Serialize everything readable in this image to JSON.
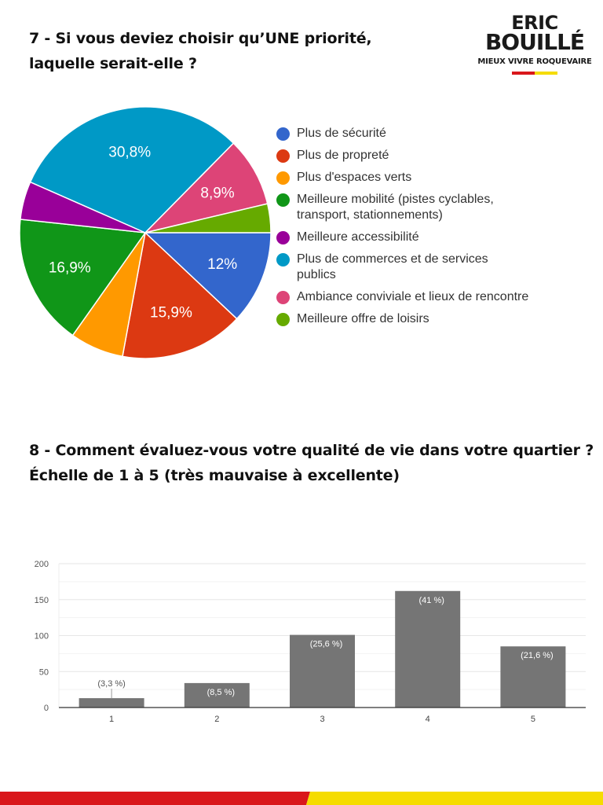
{
  "logo": {
    "line1": "ERIC",
    "line2": "BOUILLÉ",
    "tagline": "MIEUX VIVRE ROQUEVAIRE",
    "colors": {
      "red": "#d9171b",
      "yellow": "#f5dc00"
    }
  },
  "q7": {
    "title_line1": "7 - Si vous deviez choisir qu’UNE priorité,",
    "title_line2": "laquelle serait-elle ?"
  },
  "q8": {
    "title_line1": "8 - Comment évaluez-vous votre qualité de vie dans votre quartier ?",
    "title_line2": "Échelle de 1 à 5 (très mauvaise à excellente)"
  },
  "chart_data": [
    {
      "type": "pie",
      "title": "7 - Si vous deviez choisir qu’UNE priorité, laquelle serait-elle ?",
      "legend_position": "right",
      "slices": [
        {
          "label": "Plus de sécurité",
          "value": 12.0,
          "display": "12%",
          "color": "#3366cc"
        },
        {
          "label": "Plus de propreté",
          "value": 15.9,
          "display": "15,9%",
          "color": "#dc3912"
        },
        {
          "label": "Plus d'espaces verts",
          "value": 6.9,
          "display": "",
          "color": "#ff9900"
        },
        {
          "label": "Meilleure mobilité (pistes cyclables, transport, stationnements)",
          "value": 16.9,
          "display": "16,9%",
          "color": "#109618"
        },
        {
          "label": "Meilleure accessibilité",
          "value": 4.9,
          "display": "",
          "color": "#990099"
        },
        {
          "label": "Plus de commerces et de services publics",
          "value": 30.8,
          "display": "30,8%",
          "color": "#0099c6"
        },
        {
          "label": "Ambiance conviviale et lieux de rencontre",
          "value": 8.9,
          "display": "8,9%",
          "color": "#dd4477"
        },
        {
          "label": "Meilleure offre de loisirs",
          "value": 3.7,
          "display": "",
          "color": "#66aa00"
        }
      ],
      "legend": [
        {
          "label_lines": [
            "Plus de sécurité"
          ],
          "color": "#3366cc"
        },
        {
          "label_lines": [
            "Plus de propreté"
          ],
          "color": "#dc3912"
        },
        {
          "label_lines": [
            "Plus d'espaces verts"
          ],
          "color": "#ff9900"
        },
        {
          "label_lines": [
            "Meilleure mobilité (pistes cyclables,",
            "transport, stationnements)"
          ],
          "color": "#109618"
        },
        {
          "label_lines": [
            "Meilleure accessibilité"
          ],
          "color": "#990099"
        },
        {
          "label_lines": [
            "Plus de commerces et de services",
            "publics"
          ],
          "color": "#0099c6"
        },
        {
          "label_lines": [
            "Ambiance conviviale et lieux de rencontre"
          ],
          "color": "#dd4477"
        },
        {
          "label_lines": [
            "Meilleure offre de loisirs"
          ],
          "color": "#66aa00"
        }
      ]
    },
    {
      "type": "bar",
      "title": "8 - Comment évaluez-vous votre qualité de vie dans votre quartier ? Échelle de 1 à 5 (très mauvaise à excellente)",
      "categories": [
        "1",
        "2",
        "3",
        "4",
        "5"
      ],
      "values": [
        13,
        34,
        101,
        162,
        85
      ],
      "labels": [
        "(3,3 %)",
        "(8,5 %)",
        "(25,6 %)",
        "(41 %)",
        "(21,6 %)"
      ],
      "percentages": [
        3.3,
        8.5,
        25.6,
        41,
        21.6
      ],
      "yticks": [
        0,
        50,
        100,
        150,
        200
      ],
      "ylim": [
        0,
        200
      ],
      "xlabel": "",
      "ylabel": "",
      "grid": true,
      "bar_color": "#757575"
    }
  ]
}
